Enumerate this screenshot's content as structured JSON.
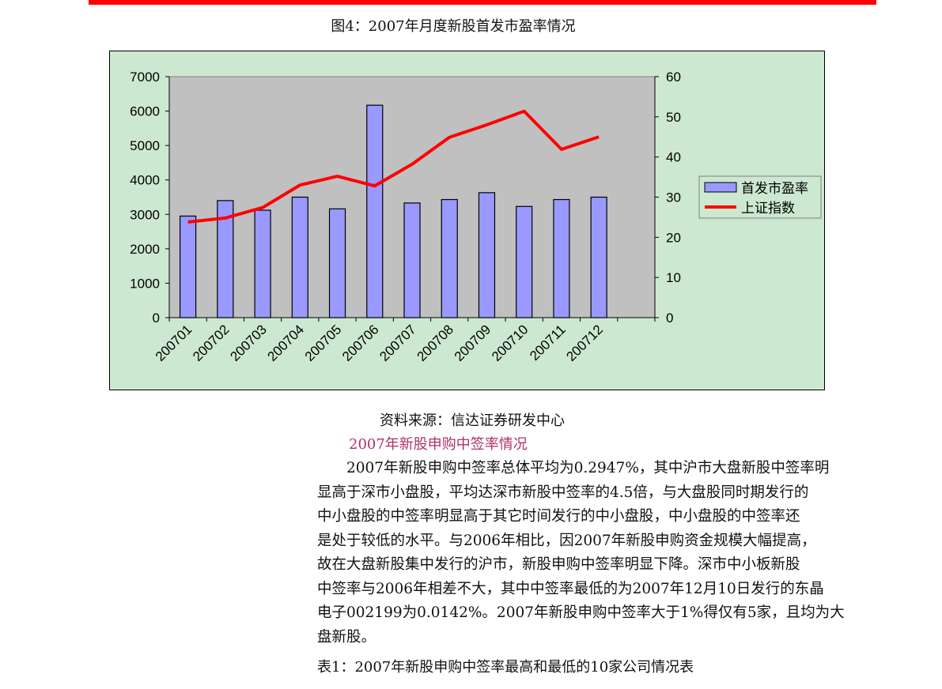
{
  "figure_title": "图4：2007年月度新股首发市盈率情况",
  "source": "资料来源：信达证券研发中心",
  "subheading": "2007年新股申购中签率情况",
  "paragraph_lines": [
    "　　2007年新股申购中签率总体平均为0.2947%，其中沪市大盘新股中签率明",
    "显高于深市小盘股，平均达深市新股中签率的4.5倍，与大盘股同时期发行的",
    "中小盘股的中签率明显高于其它时间发行的中小盘股，中小盘股的中签率还",
    "是处于较低的水平。与2006年相比，因2007年新股申购资金规模大幅提高，",
    "故在大盘新股集中发行的沪市，新股申购中签率明显下降。深市中小板新股",
    "中签率与2006年相差不大，其中中签率最低的为2007年12月10日发行的东晶",
    "电子002199为0.0142%。2007年新股申购中签率大于1%得仅有5家，且均为大",
    "盘新股。"
  ],
  "table_caption": "表1：2007年新股申购中签率最高和最低的10家公司情况表",
  "colors": {
    "bar": "#9999ff",
    "line": "#ff0000",
    "plot_bg": "#c0c0c0",
    "chart_bg": "#cde8d0",
    "top_rule": "#ff0000",
    "subheading": "#b0306a"
  },
  "chart_data": {
    "type": "bar+line",
    "title": "",
    "categories": [
      "200701",
      "200702",
      "200703",
      "200704",
      "200705",
      "200706",
      "200707",
      "200708",
      "200709",
      "200710",
      "200711",
      "200712"
    ],
    "series": [
      {
        "name": "首发市盈率",
        "type": "bar",
        "axis": "left",
        "values": [
          2950,
          3400,
          3120,
          3500,
          3160,
          6170,
          3330,
          3430,
          3630,
          3230,
          3430,
          3500
        ]
      },
      {
        "name": "上证指数",
        "type": "line",
        "axis": "right",
        "values": [
          23.8,
          24.8,
          27.4,
          33.0,
          35.2,
          32.8,
          38.2,
          44.9,
          48.0,
          51.4,
          41.9,
          45.0
        ]
      }
    ],
    "left_ylim": [
      0,
      7000
    ],
    "left_ticks": [
      "0",
      "1000",
      "2000",
      "3000",
      "4000",
      "5000",
      "6000",
      "7000"
    ],
    "right_ylim": [
      0,
      60
    ],
    "right_ticks": [
      "0",
      "10",
      "20",
      "30",
      "40",
      "50",
      "60"
    ],
    "legend": "right",
    "grid": false
  }
}
